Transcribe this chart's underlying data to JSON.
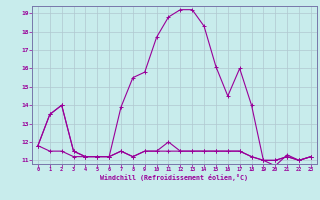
{
  "title": "",
  "xlabel": "Windchill (Refroidissement éolien,°C)",
  "ylabel": "",
  "background_color": "#c8ecec",
  "grid_color": "#b0c8d0",
  "line_color": "#990099",
  "spine_color": "#7777aa",
  "xlim": [
    -0.5,
    23.5
  ],
  "ylim": [
    10.8,
    19.4
  ],
  "yticks": [
    11,
    12,
    13,
    14,
    15,
    16,
    17,
    18,
    19
  ],
  "xticks": [
    0,
    1,
    2,
    3,
    4,
    5,
    6,
    7,
    8,
    9,
    10,
    11,
    12,
    13,
    14,
    15,
    16,
    17,
    18,
    19,
    20,
    21,
    22,
    23
  ],
  "series": [
    [
      11.8,
      13.5,
      14.0,
      11.5,
      11.2,
      11.2,
      11.2,
      11.5,
      11.2,
      11.5,
      11.5,
      12.0,
      11.5,
      11.5,
      11.5,
      11.5,
      11.5,
      11.5,
      11.2,
      11.0,
      11.0,
      11.2,
      11.0,
      11.2
    ],
    [
      11.8,
      13.5,
      14.0,
      11.5,
      11.2,
      11.2,
      11.2,
      13.9,
      15.5,
      15.8,
      17.7,
      18.8,
      19.2,
      19.2,
      18.3,
      16.1,
      14.5,
      16.0,
      14.0,
      11.0,
      10.7,
      11.3,
      11.0,
      11.2
    ],
    [
      11.8,
      11.5,
      11.5,
      11.2,
      11.2,
      11.2,
      11.2,
      11.5,
      11.2,
      11.5,
      11.5,
      11.5,
      11.5,
      11.5,
      11.5,
      11.5,
      11.5,
      11.5,
      11.2,
      11.0,
      11.0,
      11.2,
      11.0,
      11.2
    ]
  ]
}
